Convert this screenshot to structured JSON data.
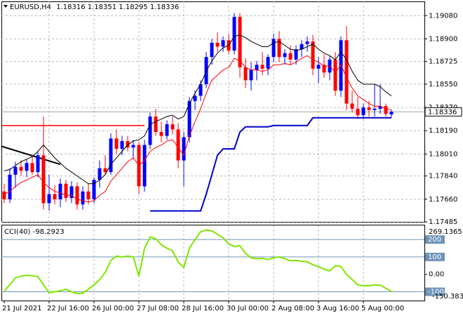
{
  "chart_data": {
    "type": "candlestick",
    "symbol": "EURUSD,H4",
    "up_color": "#0000ff",
    "down_color": "#ff0000",
    "ylim": [
      1.17485,
      1.1919
    ],
    "yticks": [
      {
        "value": 1.1908,
        "label": "1.19080"
      },
      {
        "value": 1.189,
        "label": "1.18900"
      },
      {
        "value": 1.18725,
        "label": "1.18725"
      },
      {
        "value": 1.1855,
        "label": "1.18550"
      },
      {
        "value": 1.1837,
        "label": "1.18370"
      },
      {
        "value": 1.1819,
        "label": "1.18190"
      },
      {
        "value": 1.1801,
        "label": "1.18010"
      },
      {
        "value": 1.1784,
        "label": "1.17840"
      },
      {
        "value": 1.1766,
        "label": "1.17660"
      },
      {
        "value": 1.17485,
        "label": "1.17485"
      }
    ],
    "xticks": [
      {
        "value": 0,
        "label": "21 Jul 2021"
      },
      {
        "value": 8,
        "label": "22 Jul 16:00"
      },
      {
        "value": 16,
        "label": "26 Jul 00:00"
      },
      {
        "value": 24,
        "label": "27 Jul 08:00"
      },
      {
        "value": 32,
        "label": "28 Jul 16:00"
      },
      {
        "value": 40,
        "label": "30 Jul 00:00"
      },
      {
        "value": 48,
        "label": "2 Aug 08:00"
      },
      {
        "value": 56,
        "label": "3 Aug 16:00"
      },
      {
        "value": 64,
        "label": "5 Aug 00:00"
      }
    ],
    "grid": true,
    "ohlc": [
      [
        1.1772,
        1.1778,
        1.1763,
        1.1766
      ],
      [
        1.1766,
        1.179,
        1.1763,
        1.1785
      ],
      [
        1.1785,
        1.1795,
        1.1775,
        1.1791
      ],
      [
        1.1791,
        1.1796,
        1.1784,
        1.1788
      ],
      [
        1.1788,
        1.1797,
        1.1783,
        1.1794
      ],
      [
        1.1794,
        1.18,
        1.1785,
        1.1787
      ],
      [
        1.1787,
        1.1803,
        1.1783,
        1.18
      ],
      [
        1.18,
        1.183,
        1.1758,
        1.1763
      ],
      [
        1.1763,
        1.1785,
        1.1757,
        1.177
      ],
      [
        1.177,
        1.1777,
        1.1762,
        1.1766
      ],
      [
        1.1766,
        1.1782,
        1.176,
        1.1778
      ],
      [
        1.1778,
        1.1781,
        1.1764,
        1.1767
      ],
      [
        1.1767,
        1.178,
        1.1763,
        1.1776
      ],
      [
        1.1776,
        1.1779,
        1.1758,
        1.1762
      ],
      [
        1.1762,
        1.1776,
        1.1758,
        1.1772
      ],
      [
        1.1772,
        1.1778,
        1.1762,
        1.1766
      ],
      [
        1.1766,
        1.1783,
        1.1763,
        1.1781
      ],
      [
        1.1781,
        1.1796,
        1.1775,
        1.179
      ],
      [
        1.179,
        1.18,
        1.1785,
        1.1787
      ],
      [
        1.1787,
        1.1817,
        1.1785,
        1.1813
      ],
      [
        1.1813,
        1.182,
        1.1801,
        1.1805
      ],
      [
        1.1805,
        1.1815,
        1.18,
        1.1811
      ],
      [
        1.1811,
        1.1815,
        1.1803,
        1.1806
      ],
      [
        1.1806,
        1.1812,
        1.1797,
        1.1808
      ],
      [
        1.1808,
        1.181,
        1.177,
        1.1776
      ],
      [
        1.1776,
        1.1812,
        1.1772,
        1.1808
      ],
      [
        1.1808,
        1.1833,
        1.1805,
        1.183
      ],
      [
        1.183,
        1.1836,
        1.1815,
        1.1818
      ],
      [
        1.1818,
        1.1826,
        1.181,
        1.1815
      ],
      [
        1.1815,
        1.1827,
        1.1812,
        1.1824
      ],
      [
        1.1824,
        1.183,
        1.1816,
        1.182
      ],
      [
        1.182,
        1.1825,
        1.179,
        1.1796
      ],
      [
        1.1796,
        1.1818,
        1.1776,
        1.1814
      ],
      [
        1.1814,
        1.1845,
        1.181,
        1.1842
      ],
      [
        1.1842,
        1.185,
        1.1835,
        1.1846
      ],
      [
        1.1846,
        1.1858,
        1.1842,
        1.1855
      ],
      [
        1.1855,
        1.188,
        1.1852,
        1.1876
      ],
      [
        1.1876,
        1.189,
        1.187,
        1.1887
      ],
      [
        1.1887,
        1.1895,
        1.188,
        1.1884
      ],
      [
        1.1884,
        1.1892,
        1.188,
        1.1889
      ],
      [
        1.1889,
        1.1894,
        1.1878,
        1.1881
      ],
      [
        1.1881,
        1.191,
        1.1878,
        1.1907
      ],
      [
        1.1907,
        1.191,
        1.186,
        1.1868
      ],
      [
        1.1868,
        1.1875,
        1.1852,
        1.1858
      ],
      [
        1.1858,
        1.1872,
        1.185,
        1.1866
      ],
      [
        1.1866,
        1.1873,
        1.1858,
        1.187
      ],
      [
        1.187,
        1.188,
        1.1862,
        1.1867
      ],
      [
        1.1867,
        1.1878,
        1.1862,
        1.1876
      ],
      [
        1.1876,
        1.1894,
        1.1872,
        1.189
      ],
      [
        1.189,
        1.1896,
        1.1872,
        1.1876
      ],
      [
        1.1876,
        1.1882,
        1.187,
        1.1879
      ],
      [
        1.1879,
        1.1885,
        1.187,
        1.1874
      ],
      [
        1.1874,
        1.1885,
        1.187,
        1.1882
      ],
      [
        1.1882,
        1.1889,
        1.1876,
        1.1886
      ],
      [
        1.1886,
        1.1892,
        1.188,
        1.1888
      ],
      [
        1.1888,
        1.1893,
        1.1862,
        1.1867
      ],
      [
        1.1867,
        1.1876,
        1.1856,
        1.187
      ],
      [
        1.187,
        1.1878,
        1.186,
        1.1864
      ],
      [
        1.1864,
        1.1877,
        1.1858,
        1.1874
      ],
      [
        1.1874,
        1.188,
        1.1846,
        1.185
      ],
      [
        1.185,
        1.1892,
        1.1845,
        1.1889
      ],
      [
        1.1889,
        1.19,
        1.1835,
        1.184
      ],
      [
        1.184,
        1.185,
        1.1833,
        1.1836
      ],
      [
        1.1836,
        1.1845,
        1.1828,
        1.1831
      ],
      [
        1.1831,
        1.184,
        1.1828,
        1.1837
      ],
      [
        1.1837,
        1.1842,
        1.183,
        1.1835
      ],
      [
        1.1835,
        1.1855,
        1.183,
        1.1836
      ],
      [
        1.1836,
        1.1855,
        1.1832,
        1.1838
      ],
      [
        1.1838,
        1.184,
        1.183,
        1.1832
      ],
      [
        1.18316,
        1.18351,
        1.18295,
        1.18336
      ]
    ],
    "series": [
      {
        "color": "#ff0000",
        "values": [
          1.177,
          1.1772,
          1.1776,
          1.1779,
          1.1781,
          1.1783,
          1.1785,
          1.1779,
          1.1775,
          1.1772,
          1.1771,
          1.1769,
          1.1769,
          1.1766,
          1.1765,
          1.1764,
          1.1765,
          1.1769,
          1.1772,
          1.178,
          1.1785,
          1.179,
          1.1795,
          1.1798,
          1.1792,
          1.1796,
          1.1803,
          1.1806,
          1.1808,
          1.1811,
          1.1812,
          1.1806,
          1.18,
          1.1815,
          1.1826,
          1.1836,
          1.1848,
          1.1858,
          1.1862,
          1.1866,
          1.1868,
          1.1875,
          1.1873,
          1.1868,
          1.1866,
          1.1866,
          1.1865,
          1.1866,
          1.187,
          1.187,
          1.1871,
          1.187,
          1.1872,
          1.1875,
          1.1877,
          1.1874,
          1.1872,
          1.1869,
          1.1869,
          1.1864,
          1.187,
          1.186,
          1.1852,
          1.1846,
          1.1843,
          1.184,
          1.1838,
          1.1838,
          1.1836,
          1.1835
        ]
      },
      {
        "color": "#000000",
        "values": [
          1.1788,
          1.1789,
          1.1792,
          1.1795,
          1.1797,
          1.1799,
          1.1803,
          1.1808,
          1.1803,
          1.1798,
          1.1794,
          1.179,
          1.1787,
          1.1784,
          1.1781,
          1.1778,
          1.1778,
          1.1781,
          1.1785,
          1.1793,
          1.1798,
          1.1803,
          1.1808,
          1.1811,
          1.1812,
          1.1815,
          1.1824,
          1.1826,
          1.1828,
          1.183,
          1.1831,
          1.1828,
          1.183,
          1.184,
          1.1848,
          1.1855,
          1.1865,
          1.1873,
          1.1879,
          1.1883,
          1.1885,
          1.1892,
          1.1893,
          1.1891,
          1.1888,
          1.1886,
          1.1884,
          1.1884,
          1.1887,
          1.1888,
          1.1885,
          1.1882,
          1.1881,
          1.1882,
          1.1884,
          1.1886,
          1.1882,
          1.1879,
          1.1877,
          1.1874,
          1.188,
          1.1874,
          1.1865,
          1.1858,
          1.1855,
          1.1855,
          1.1855,
          1.1853,
          1.1849,
          1.1846
        ]
      },
      {
        "color": "#0000cc",
        "values": [
          null,
          null,
          null,
          null,
          null,
          null,
          null,
          null,
          null,
          null,
          null,
          null,
          null,
          null,
          null,
          null,
          null,
          null,
          null,
          null,
          null,
          null,
          null,
          null,
          null,
          null,
          1.1757,
          1.1757,
          1.1757,
          1.1757,
          1.1757,
          1.1757,
          1.1757,
          1.1757,
          1.1757,
          1.1757,
          1.177,
          1.1785,
          1.18,
          1.1805,
          1.1805,
          1.1805,
          1.1818,
          1.1822,
          1.1822,
          1.1822,
          1.1822,
          1.1822,
          1.1823,
          1.1823,
          1.1823,
          1.1823,
          1.1823,
          1.1823,
          1.1823,
          1.1829,
          1.1829,
          1.1829,
          1.1829,
          1.1829,
          1.1829,
          1.1829,
          1.1829,
          1.1829,
          1.1829,
          1.1829,
          1.1829,
          1.1829,
          1.1829,
          1.1829
        ]
      }
    ],
    "lines": [
      {
        "color": "#ff0000",
        "from": [
          0,
          1.1823
        ],
        "to": [
          25,
          1.1823
        ]
      },
      {
        "color": "#000000",
        "from": [
          0,
          1.1807
        ],
        "to": [
          10,
          1.1793
        ]
      }
    ],
    "indicator": {
      "type": "line",
      "name": "CCI(40)",
      "color": "#7ee600",
      "values": [
        -96,
        -60,
        -20,
        -10,
        -5,
        -8,
        -12,
        -60,
        -105,
        -100,
        -95,
        -85,
        -100,
        -110,
        -108,
        -85,
        -60,
        -30,
        10,
        80,
        105,
        100,
        105,
        100,
        -10,
        150,
        215,
        205,
        170,
        150,
        135,
        70,
        40,
        150,
        200,
        245,
        255,
        250,
        230,
        210,
        175,
        160,
        165,
        120,
        95,
        90,
        92,
        85,
        95,
        100,
        90,
        78,
        80,
        75,
        72,
        55,
        45,
        30,
        20,
        50,
        45,
        0,
        -30,
        -60,
        -65,
        -65,
        -60,
        -62,
        -80,
        -98.2923
      ],
      "ylim": [
        -150.3831,
        269.1365
      ],
      "yticks": [
        {
          "value": 0,
          "label": "0.00"
        }
      ],
      "levels": [
        200,
        100,
        -100
      ]
    }
  }
}
